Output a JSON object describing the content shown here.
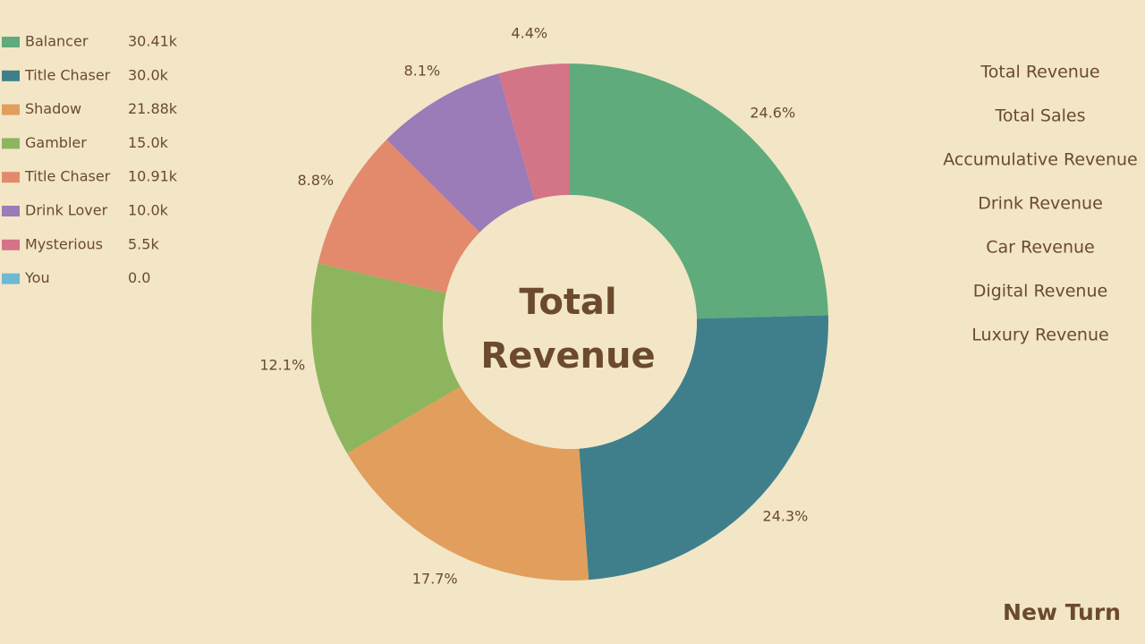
{
  "chart_data": {
    "type": "pie",
    "title": "Total Revenue",
    "categories": [
      "Balancer",
      "Title Chaser",
      "Shadow",
      "Gambler",
      "Title Chaser",
      "Drink Lover",
      "Mysterious",
      "You"
    ],
    "values": [
      30410,
      30000,
      21880,
      15000,
      10910,
      10000,
      5500,
      0
    ],
    "value_labels": [
      "30.41k",
      "30.0k",
      "21.88k",
      "15.0k",
      "10.91k",
      "10.0k",
      "5.5k",
      "0.0"
    ],
    "slice_labels": [
      "24.6%",
      "24.3%",
      "17.7%",
      "12.1%",
      "8.8%",
      "8.1%",
      "4.4%",
      null
    ],
    "colors": [
      "#5fab7b",
      "#3f7f8c",
      "#e19e5c",
      "#8db55d",
      "#e38a6c",
      "#9b7bb8",
      "#d47487",
      "#6fb8d3"
    ]
  },
  "menu": [
    "Total Revenue",
    "Total Sales",
    "Accumulative Revenue",
    "Drink Revenue",
    "Car Revenue",
    "Digital Revenue",
    "Luxury Revenue"
  ],
  "button": "New Turn"
}
